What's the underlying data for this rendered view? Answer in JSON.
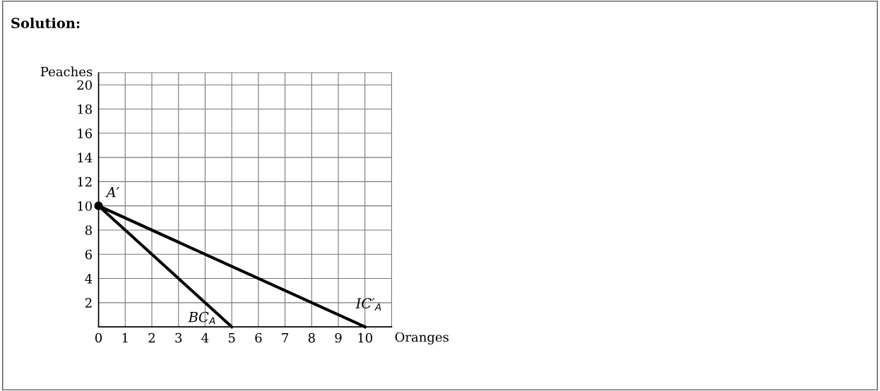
{
  "chart_data": {
    "type": "line",
    "title": "Solution:",
    "xlabel": "Oranges",
    "ylabel": "Peaches",
    "xlim": [
      0,
      11
    ],
    "ylim": [
      0,
      21
    ],
    "xticks": [
      0,
      1,
      2,
      3,
      4,
      5,
      6,
      7,
      8,
      9,
      10
    ],
    "yticks": [
      2,
      4,
      6,
      8,
      10,
      12,
      14,
      16,
      18,
      20
    ],
    "grid": true,
    "legend": false,
    "series": [
      {
        "name": "BC$_{A}$",
        "color": "#000000",
        "x": [
          0,
          5
        ],
        "values": [
          10,
          0
        ]
      },
      {
        "name": "IC′$_{A}$",
        "color": "#000000",
        "x": [
          0,
          10
        ],
        "values": [
          10,
          0
        ]
      },
      {
        "name": "A′",
        "type": "scatter",
        "marker": "circle",
        "color": "#000000",
        "x": [
          0
        ],
        "values": [
          10
        ]
      }
    ]
  }
}
